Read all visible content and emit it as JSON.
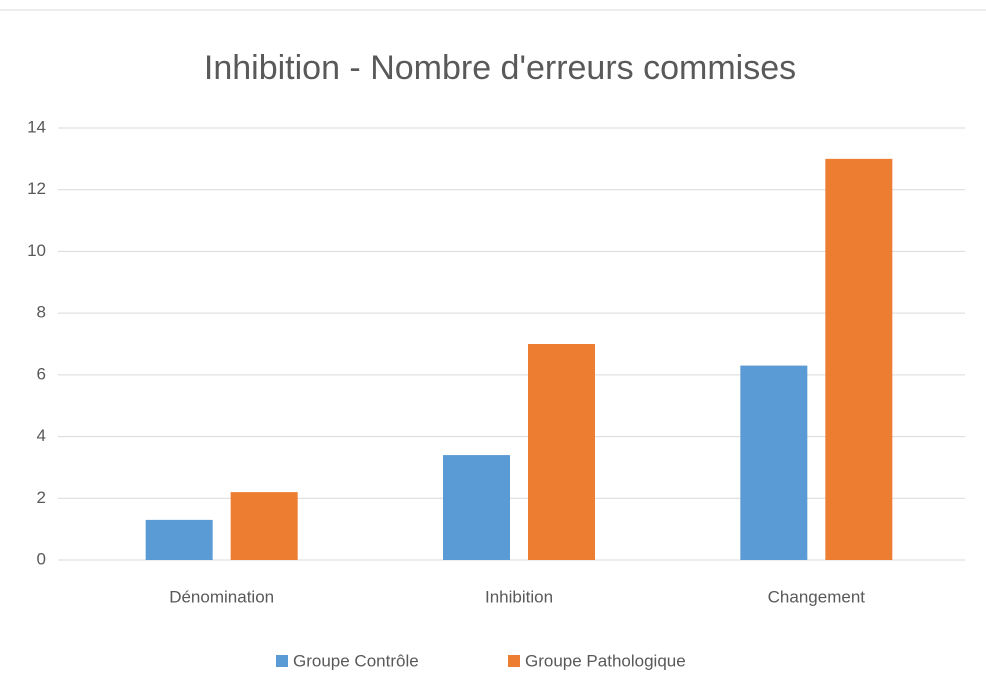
{
  "chart_data": {
    "type": "bar",
    "title": "Inhibition - Nombre d'erreurs commises",
    "categories": [
      "Dénomination",
      "Inhibition",
      "Changement"
    ],
    "series": [
      {
        "name": "Groupe Contrôle",
        "color": "#5b9bd5",
        "values": [
          1.3,
          3.4,
          6.3
        ]
      },
      {
        "name": "Groupe Pathologique",
        "color": "#ed7d31",
        "values": [
          2.2,
          7,
          13
        ]
      }
    ],
    "ylim": [
      0,
      14
    ],
    "yticks": [
      0,
      2,
      4,
      6,
      8,
      10,
      12,
      14
    ],
    "grid": true,
    "legend": "bottom"
  }
}
